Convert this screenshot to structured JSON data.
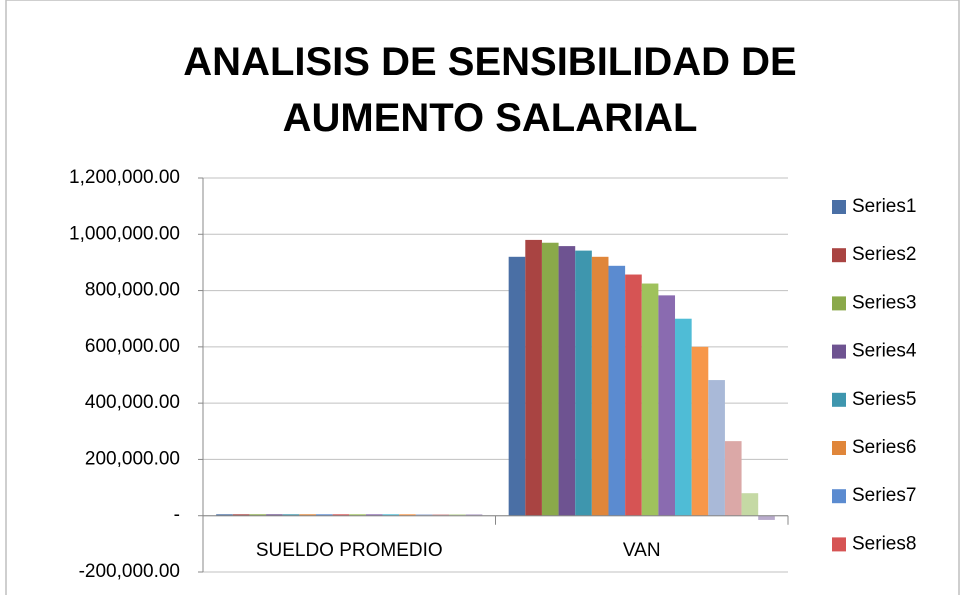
{
  "chart_data": {
    "type": "bar",
    "title": "ANALISIS DE SENSIBILIDAD DE AUMENTO SALARIAL",
    "categories": [
      "SUELDO PROMEDIO",
      "VAN"
    ],
    "ylim": [
      -200000,
      1200000
    ],
    "yticks": [
      {
        "value": -200000,
        "label": "-200,000.00"
      },
      {
        "value": 0,
        "label": "-"
      },
      {
        "value": 200000,
        "label": "200,000.00"
      },
      {
        "value": 400000,
        "label": "400,000.00"
      },
      {
        "value": 600000,
        "label": "600,000.00"
      },
      {
        "value": 800000,
        "label": "800,000.00"
      },
      {
        "value": 1000000,
        "label": "1,000,000.00"
      },
      {
        "value": 1200000,
        "label": "1,200,000.00"
      }
    ],
    "grid": true,
    "legend": "right",
    "series": [
      {
        "name": "Series1",
        "color": "#4a6fa5",
        "values": [
          5000,
          920000
        ]
      },
      {
        "name": "Series2",
        "color": "#a94442",
        "values": [
          5000,
          980000
        ]
      },
      {
        "name": "Series3",
        "color": "#8aa94a",
        "values": [
          5000,
          970000
        ]
      },
      {
        "name": "Series4",
        "color": "#6e5391",
        "values": [
          5000,
          958000
        ]
      },
      {
        "name": "Series5",
        "color": "#3e96ae",
        "values": [
          5000,
          942000
        ]
      },
      {
        "name": "Series6",
        "color": "#e0863a",
        "values": [
          5000,
          920000
        ]
      },
      {
        "name": "Series7",
        "color": "#5b8bd0",
        "values": [
          5000,
          888000
        ]
      },
      {
        "name": "Series8",
        "color": "#d65454",
        "values": [
          5000,
          857000
        ]
      },
      {
        "color": "#9fc25c",
        "values": [
          5000,
          825000
        ]
      },
      {
        "color": "#8a6bb0",
        "values": [
          5000,
          783000
        ]
      },
      {
        "color": "#4fbcd6",
        "values": [
          5000,
          700000
        ]
      },
      {
        "color": "#f7974a",
        "values": [
          5000,
          600000
        ]
      },
      {
        "color": "#a9b9d8",
        "values": [
          5000,
          482000
        ]
      },
      {
        "color": "#dba8a7",
        "values": [
          5000,
          265000
        ]
      },
      {
        "color": "#c5d9a4",
        "values": [
          5000,
          80000
        ]
      },
      {
        "color": "#b9abcc",
        "values": [
          5000,
          -15000
        ]
      }
    ]
  }
}
